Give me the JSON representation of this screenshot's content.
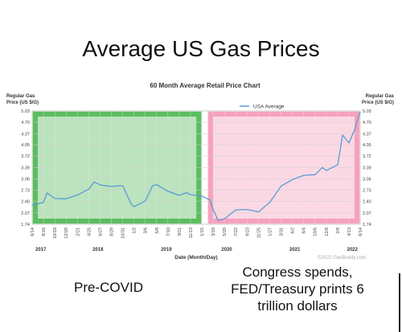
{
  "slide": {
    "title": "Average US Gas Prices",
    "note_left": "Pre-COVID",
    "note_right": "Congress spends, FED/Treasury prints 6 trillion dollars"
  },
  "chart_data": {
    "type": "line",
    "title": "60 Month Average Retail Price Chart",
    "ylabel_left": [
      "Regular Gas",
      "Price (US $/G)"
    ],
    "ylabel_right": [
      "Regular Gas",
      "Price (US $/G)"
    ],
    "xlabel": "Date (Month/Day)",
    "credit": "©2022 GasBuddy.com",
    "ylim": [
      1.74,
      5.03
    ],
    "yticks": [
      "5.03",
      "4.70",
      "4.37",
      "4.05",
      "3.72",
      "3.39",
      "3.06",
      "2.73",
      "2.40",
      "2.07",
      "1.74"
    ],
    "xticks": [
      "6/14",
      "8/16",
      "10/18",
      "12/20",
      "2/21",
      "4/25",
      "6/27",
      "8/29",
      "10/31",
      "1/2",
      "3/6",
      "5/8",
      "7/10",
      "9/11",
      "11/13",
      "1/15",
      "3/18",
      "5/20",
      "7/22",
      "9/23",
      "11/25",
      "1/27",
      "3/31",
      "6/2",
      "8/4",
      "10/6",
      "12/8",
      "2/9",
      "4/13",
      "6/14"
    ],
    "years": [
      {
        "label": "2017",
        "x": "2017-08-01"
      },
      {
        "label": "2018",
        "x": "2018-06-15"
      },
      {
        "label": "2019",
        "x": "2019-07-01"
      },
      {
        "label": "2020",
        "x": "2020-06-01"
      },
      {
        "label": "2021",
        "x": "2021-06-15"
      },
      {
        "label": "2022",
        "x": "2022-05-01"
      }
    ],
    "legend": {
      "label": "USA Average",
      "position": "top-right",
      "color": "#5b9bd5"
    },
    "regions": [
      {
        "name": "pre-covid",
        "from": "2017-06-14",
        "to": "2020-01-15",
        "color": "#3cb043"
      },
      {
        "name": "spending",
        "from": "2020-02-15",
        "to": "2022-06-14",
        "color": "#f48fb1"
      }
    ],
    "series": [
      {
        "name": "USA Average",
        "color": "#5b9bd5",
        "x": [
          "2017-06-14",
          "2017-07-15",
          "2017-08-16",
          "2017-09-05",
          "2017-10-18",
          "2017-12-20",
          "2018-02-21",
          "2018-04-25",
          "2018-05-25",
          "2018-06-27",
          "2018-08-29",
          "2018-10-31",
          "2018-12-15",
          "2019-01-02",
          "2019-03-06",
          "2019-04-15",
          "2019-05-08",
          "2019-07-10",
          "2019-09-11",
          "2019-10-20",
          "2019-11-13",
          "2020-01-15",
          "2020-03-01",
          "2020-03-18",
          "2020-04-15",
          "2020-05-20",
          "2020-07-22",
          "2020-09-23",
          "2020-11-25",
          "2021-01-27",
          "2021-03-31",
          "2021-06-02",
          "2021-08-04",
          "2021-10-06",
          "2021-11-15",
          "2021-12-08",
          "2022-02-09",
          "2022-03-08",
          "2022-04-13",
          "2022-05-15",
          "2022-06-14"
        ],
        "values": [
          2.3,
          2.33,
          2.38,
          2.65,
          2.49,
          2.48,
          2.59,
          2.76,
          2.97,
          2.88,
          2.84,
          2.86,
          2.35,
          2.25,
          2.42,
          2.86,
          2.89,
          2.7,
          2.58,
          2.66,
          2.6,
          2.56,
          2.44,
          2.16,
          1.85,
          1.9,
          2.16,
          2.17,
          2.1,
          2.38,
          2.85,
          3.04,
          3.16,
          3.18,
          3.39,
          3.3,
          3.47,
          4.33,
          4.1,
          4.5,
          5.01
        ]
      }
    ]
  }
}
